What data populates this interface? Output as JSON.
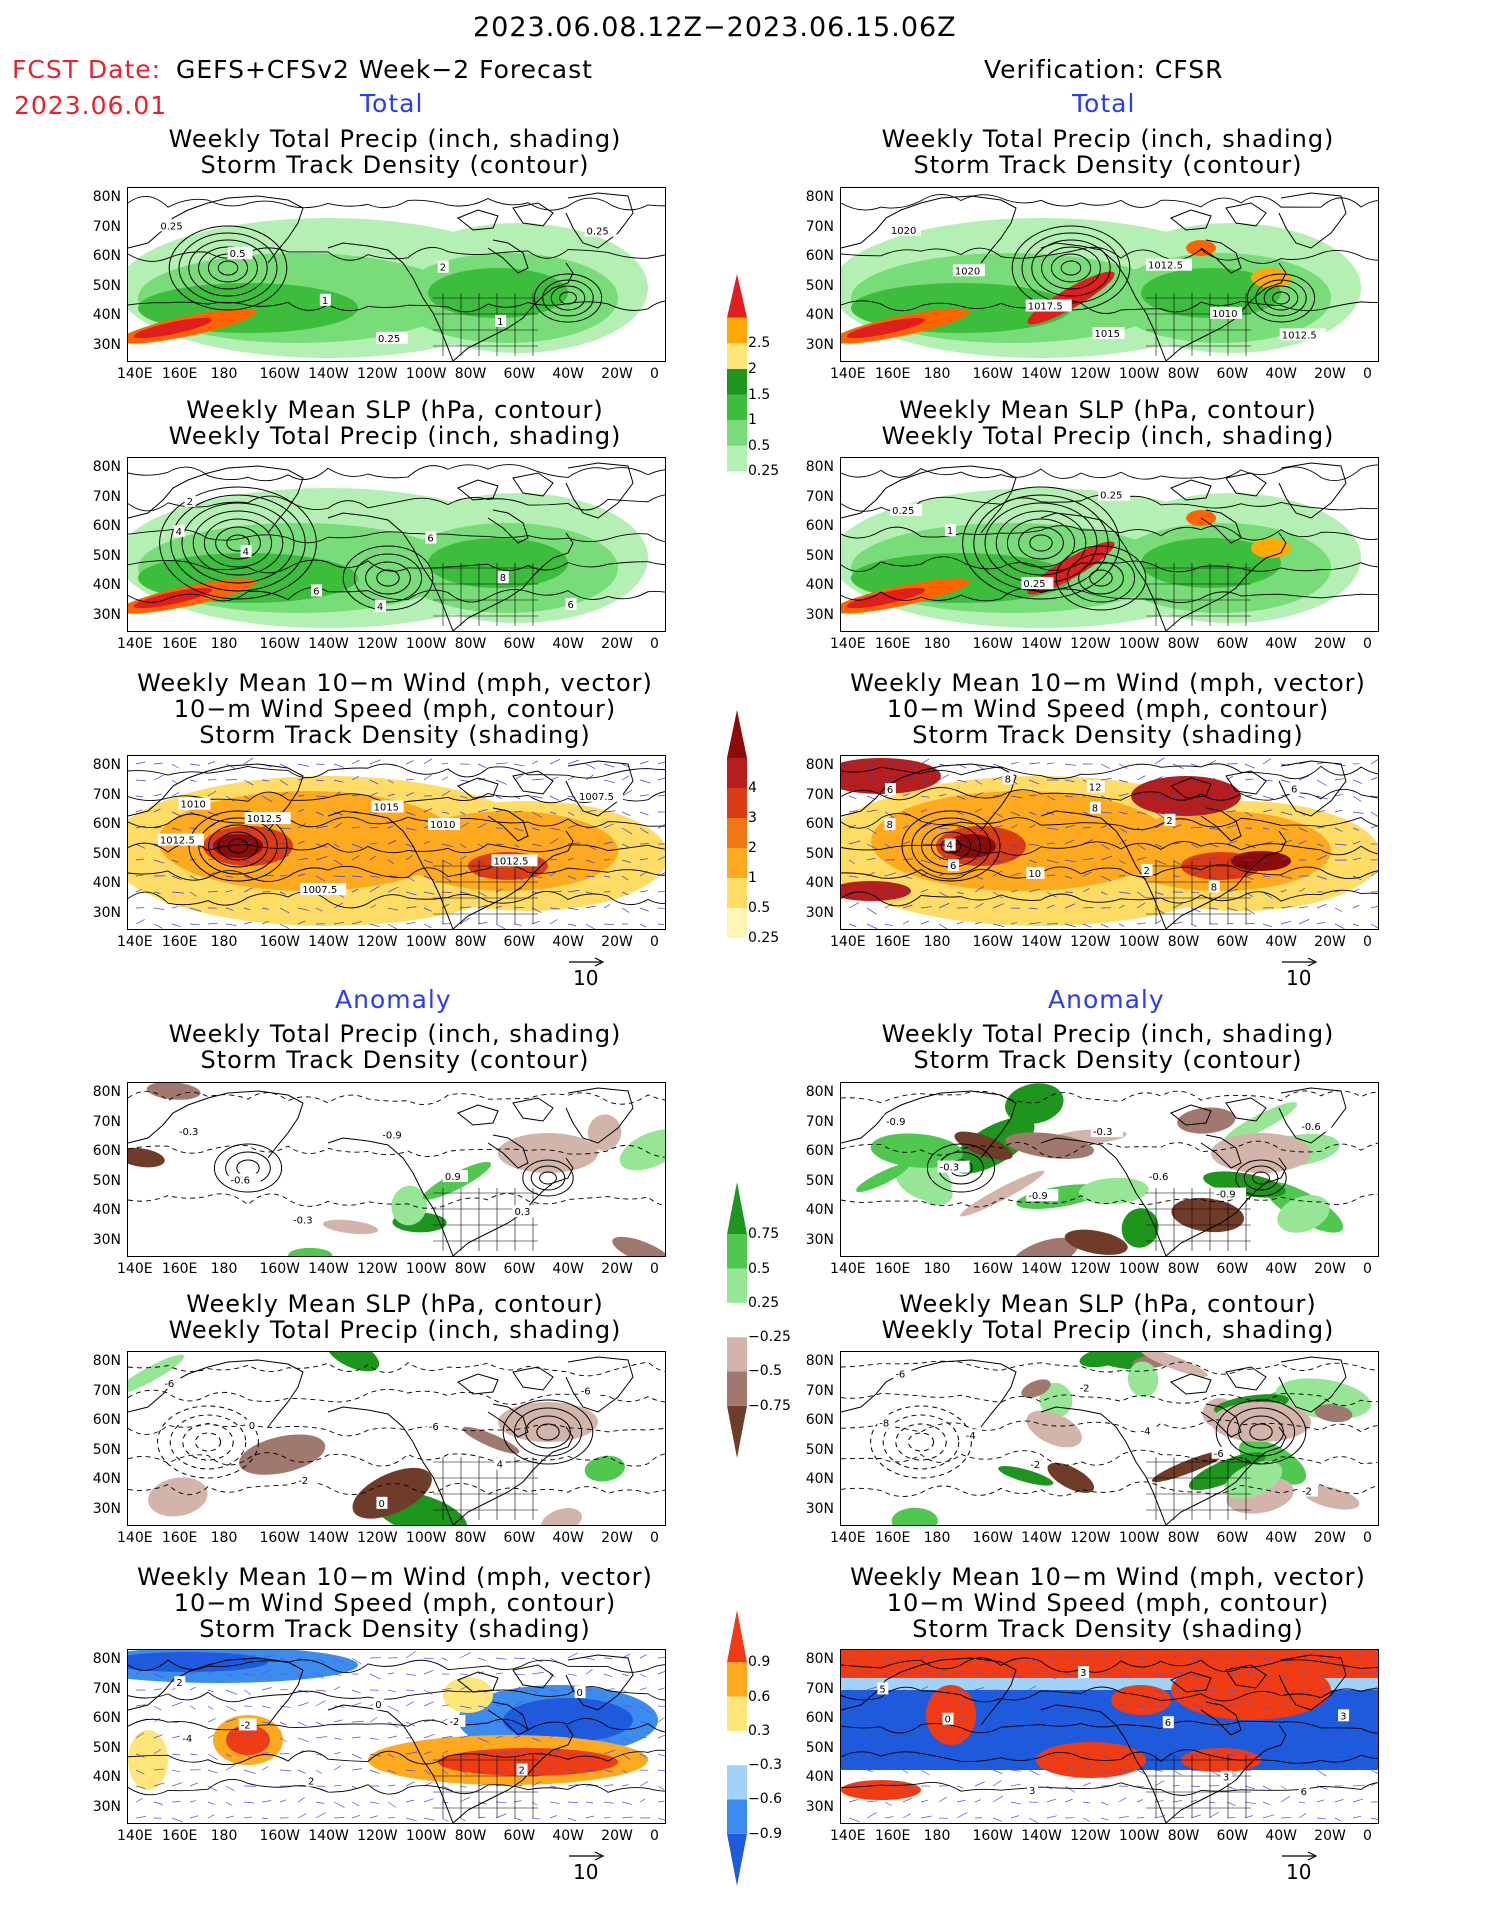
{
  "header": {
    "date_range": "2023.06.08.12Z−2023.06.15.06Z",
    "fcst_date_label": "FCST Date:",
    "model": "GEFS+CFSv2 Week−2 Forecast",
    "fcst_date": "2023.06.01",
    "verification": "Verification: CFSR"
  },
  "sections": {
    "total": "Total",
    "anomaly": "Anomaly"
  },
  "titles": {
    "precip_storm": [
      "Weekly Total Precip (inch, shading)",
      "Storm Track Density (contour)"
    ],
    "slp_precip": [
      "Weekly Mean SLP (hPa, contour)",
      "Weekly Total Precip (inch, shading)"
    ],
    "wind_storm": [
      "Weekly Mean 10−m Wind (mph, vector)",
      "10−m Wind Speed (mph, contour)",
      "Storm Track Density (shading)"
    ]
  },
  "axes": {
    "y": [
      "80N",
      "70N",
      "60N",
      "50N",
      "40N",
      "30N"
    ],
    "x": [
      "140E",
      "160E",
      "180",
      "160W",
      "140W",
      "120W",
      "100W",
      "80W",
      "60W",
      "40W",
      "20W",
      "0"
    ]
  },
  "vector_ref": "10",
  "colorbars": {
    "precip_total": [
      "0.25",
      "0.5",
      "1",
      "1.5",
      "2",
      "2.5"
    ],
    "storm_total": [
      "0.25",
      "0.5",
      "1",
      "2",
      "3",
      "4"
    ],
    "precip_anom": [
      "−0.75",
      "−0.5",
      "−0.25",
      "0.25",
      "0.5",
      "0.75"
    ],
    "storm_anom": [
      "−0.9",
      "−0.6",
      "−0.3",
      "0.3",
      "0.6",
      "0.9"
    ]
  },
  "contour_labels": {
    "p1": [
      "0.25",
      "0.5",
      "1",
      "0.25",
      "2",
      "1",
      "0.25"
    ],
    "p2": [
      "1020",
      "1020",
      "1017.5",
      "1015",
      "1012.5",
      "1010",
      "1012.5"
    ],
    "p3": [
      "2",
      "4",
      "6",
      "4",
      "6",
      "8",
      "6",
      "4"
    ],
    "p4": [
      "0.25",
      "1",
      "0.25",
      "0.25"
    ],
    "p5": [
      "1010",
      "1012.5",
      "1007.5",
      "1015",
      "1010",
      "1012.5",
      "1007.5",
      "1012.5"
    ],
    "p6": [
      "6",
      "4",
      "10",
      "12",
      "2",
      "8",
      "6",
      "8",
      "6",
      "8",
      "8",
      "2"
    ],
    "p7": [
      "-0.3",
      "-0.6",
      "-0.3",
      "-0.9",
      "0.9",
      "0.3"
    ],
    "p8": [
      "-0.9",
      "-0.3",
      "-0.9",
      "-0.3",
      "-0.6",
      "-0.9",
      "-0.6"
    ],
    "p9": [
      "-6",
      "0",
      "-2",
      "0",
      "-6",
      "4",
      "-6"
    ],
    "p10": [
      "-6",
      "-4",
      "-2",
      "-2",
      "-4",
      "-6",
      "-2",
      "-8"
    ],
    "p11": [
      "2",
      "-2",
      "2",
      "0",
      "-2",
      "2",
      "0",
      "-4"
    ],
    "p12": [
      "5",
      "0",
      "3",
      "3",
      "6",
      "3",
      "6",
      "3"
    ]
  },
  "colors": {
    "header_red": "#e8212d",
    "section_blue": "#2a3cf0",
    "precip": [
      "#b4f0b4",
      "#78dc78",
      "#3cbe3c",
      "#1e961e",
      "#ffe678",
      "#ffaa00",
      "#ff6400",
      "#e11e1e"
    ],
    "storm": [
      "#fff5b4",
      "#ffdc64",
      "#ffaa1e",
      "#f07814",
      "#dc3c14",
      "#b41e1e",
      "#8c0a0a"
    ],
    "precip_anom": [
      "#6e3c28",
      "#a0786e",
      "#d2b4aa",
      "#ffffff",
      "#96e696",
      "#50c850",
      "#1e961e"
    ],
    "storm_anom": [
      "#1e5adc",
      "#3c8cf0",
      "#a0d2fa",
      "#ffffff",
      "#ffe678",
      "#ffaa1e",
      "#f03c14"
    ]
  }
}
